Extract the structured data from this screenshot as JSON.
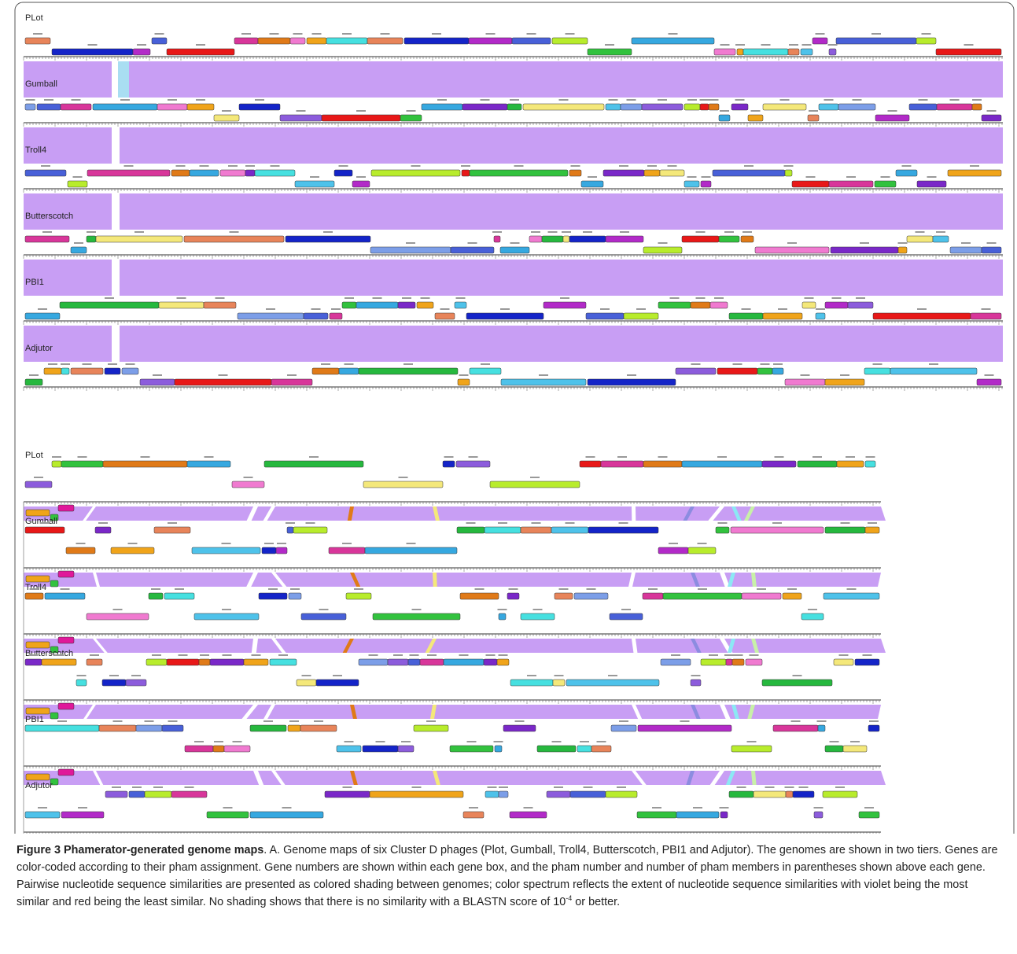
{
  "figure": {
    "tiers": [
      {
        "phages": [
          "PLot",
          "Gumball",
          "Troll4",
          "Butterscotch",
          "PBI1",
          "Adjutor"
        ]
      },
      {
        "phages": [
          "PLot",
          "Gumball",
          "Troll4",
          "Butterscotch",
          "PBI1",
          "Adjutor"
        ]
      }
    ],
    "colors": {
      "similarity_shading": "#c89ef4",
      "border": "#555555",
      "gene_palette": [
        "#e8845a",
        "#4ec2ea",
        "#1424c8",
        "#7c9ee8",
        "#b22ac8",
        "#8c5cdc",
        "#4860d8",
        "#b8ec2c",
        "#e81818",
        "#d8369a",
        "#32c23e",
        "#e07a18",
        "#36a8e0",
        "#f07ad0",
        "#7a28c8",
        "#26b83e",
        "#f0a41a",
        "#46e0e0",
        "#f4e87a"
      ]
    }
  },
  "caption": {
    "title": "Figure 3 Phamerator-generated genome maps",
    "body_part1": ". A. Genome maps of six Cluster D phages (Plot, Gumball, Troll4, Butterscotch, PBI1 and Adjutor). The genomes are shown in two tiers. Genes are color-coded according to their pham assignment. Gene numbers are shown within each gene box, and the pham number and number of pham members in parentheses shown above each gene. Pairwise nucleotide sequence similarities are presented as colored shading between genomes; color spectrum reflects the extent of nucleotide sequence similarities with violet being the most similar and red being the least similar. No shading shows that there is no similarity with a BLASTN score of 10",
    "exponent": "-4",
    "body_part2": " or better."
  }
}
